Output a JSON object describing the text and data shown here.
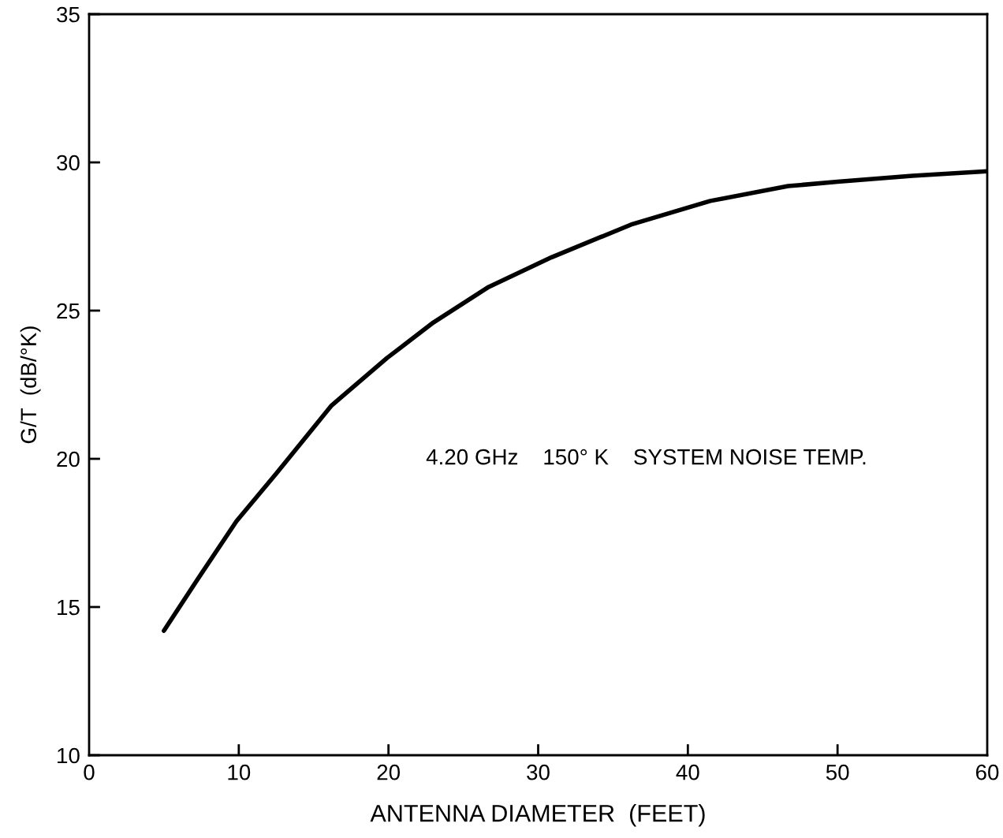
{
  "chart_data": {
    "type": "line",
    "xlabel": "ANTENNA DIAMETER  (FEET)",
    "ylabel": "G/T  (dB/°K)",
    "annotations": [
      "4.20 GHz    150° K    SYSTEM NOISE TEMP."
    ],
    "xlim": [
      0,
      60
    ],
    "xticks": [
      0,
      10,
      20,
      30,
      40,
      50,
      60
    ],
    "ylim": [
      10,
      35
    ],
    "yticks": [
      10,
      15,
      20,
      25,
      30,
      35
    ],
    "grid": false,
    "legend": false,
    "marker": "none",
    "line_style": "solid",
    "series": [
      {
        "color": "#000000",
        "x": [
          5,
          7.2,
          9.85,
          12.5,
          16.2,
          19.9,
          23.0,
          26.7,
          30.9,
          36.2,
          41.5,
          46.7,
          50,
          55,
          60
        ],
        "values": [
          14.2,
          15.9,
          17.9,
          19.5,
          21.8,
          23.4,
          24.6,
          25.8,
          26.8,
          27.9,
          28.7,
          29.2,
          29.35,
          29.55,
          29.7
        ]
      }
    ]
  }
}
